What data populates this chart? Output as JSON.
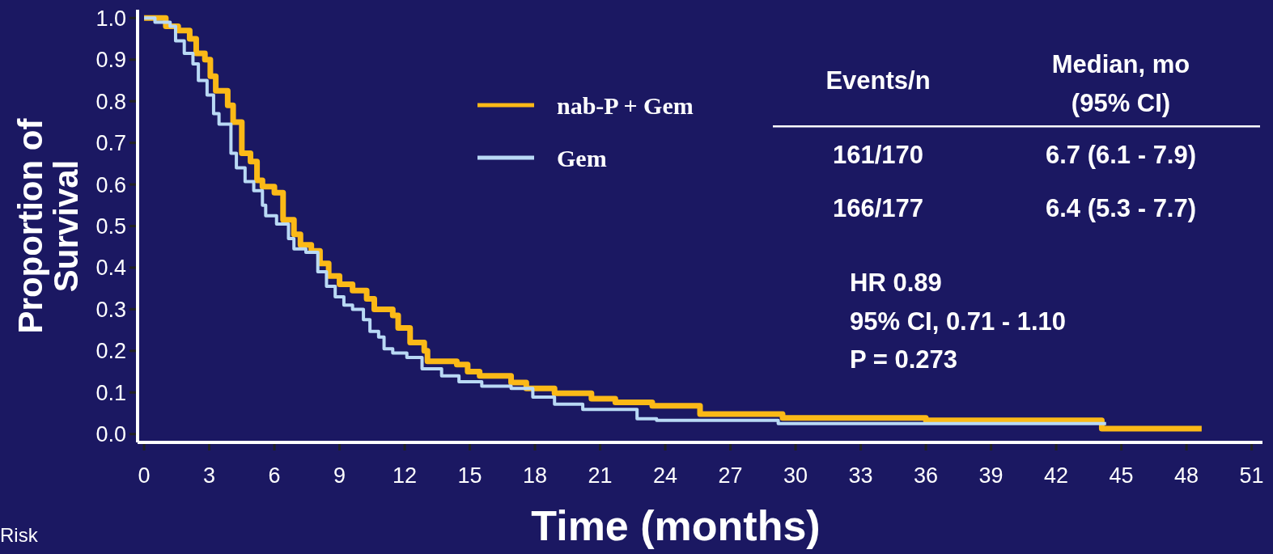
{
  "chart_data": {
    "type": "step",
    "xlabel": "Time (months)",
    "ylabel": "Proportion of Survival",
    "xlim": [
      -0.3,
      51.5
    ],
    "ylim": [
      -0.02,
      1.02
    ],
    "xticks": [
      0,
      3,
      6,
      9,
      12,
      15,
      18,
      21,
      24,
      27,
      30,
      33,
      36,
      39,
      42,
      45,
      48,
      51
    ],
    "yticks": [
      {
        "value": 0,
        "label": "0.0"
      },
      0.1,
      0.2,
      0.3,
      0.4,
      0.5,
      0.6,
      0.7,
      0.8,
      0.9,
      {
        "value": 1,
        "label": "1.0"
      }
    ],
    "legend": "top",
    "grid": false,
    "series": [
      {
        "name": "nab-P + Gem",
        "color": "#fbb917",
        "x": [
          0,
          1.0,
          1.57,
          2.1,
          2.4,
          2.8,
          3.05,
          3.3,
          3.85,
          4.1,
          4.5,
          4.9,
          5.2,
          5.45,
          6.0,
          6.4,
          6.9,
          7.2,
          7.7,
          8.1,
          8.5,
          9.0,
          9.6,
          10.25,
          10.6,
          11.45,
          11.7,
          12.25,
          12.9,
          13.05,
          14.4,
          14.9,
          15.45,
          16.9,
          17.6,
          18.9,
          20.6,
          21.7,
          23.4,
          25.6,
          29.4,
          36.0,
          44.1,
          48.7
        ],
        "values": [
          1.0,
          0.98,
          0.97,
          0.95,
          0.915,
          0.9,
          0.86,
          0.825,
          0.79,
          0.75,
          0.675,
          0.655,
          0.61,
          0.595,
          0.58,
          0.515,
          0.48,
          0.455,
          0.44,
          0.41,
          0.38,
          0.36,
          0.345,
          0.325,
          0.3,
          0.285,
          0.255,
          0.22,
          0.2,
          0.175,
          0.167,
          0.15,
          0.14,
          0.124,
          0.11,
          0.098,
          0.085,
          0.076,
          0.068,
          0.048,
          0.039,
          0.033,
          0.013,
          0.013
        ]
      },
      {
        "name": "Gem",
        "color": "#b9d9f5",
        "x": [
          0,
          0.5,
          1.2,
          1.45,
          1.85,
          2.25,
          2.5,
          2.9,
          3.2,
          3.45,
          4.0,
          4.25,
          4.65,
          5.05,
          5.45,
          5.6,
          6.1,
          6.65,
          6.9,
          7.45,
          8.0,
          8.4,
          8.8,
          9.2,
          9.6,
          10.1,
          10.4,
          10.8,
          11.05,
          11.45,
          12.1,
          12.8,
          13.7,
          14.5,
          15.55,
          16.9,
          17.9,
          18.9,
          20.2,
          22.7,
          23.6,
          29.2,
          44.3
        ],
        "values": [
          1.0,
          0.99,
          0.98,
          0.945,
          0.915,
          0.89,
          0.85,
          0.815,
          0.77,
          0.745,
          0.675,
          0.64,
          0.607,
          0.585,
          0.55,
          0.525,
          0.505,
          0.47,
          0.445,
          0.437,
          0.39,
          0.355,
          0.33,
          0.31,
          0.3,
          0.275,
          0.247,
          0.233,
          0.205,
          0.195,
          0.184,
          0.157,
          0.14,
          0.126,
          0.115,
          0.11,
          0.089,
          0.072,
          0.059,
          0.037,
          0.033,
          0.025,
          0.025
        ]
      }
    ],
    "annotations": [
      "Events/n",
      "Median, mo",
      "(95% CI)",
      "161/170",
      "6.7 (6.1 - 7.9)",
      "166/177",
      "6.4 (5.3 - 7.7)",
      "HR 0.89",
      "95% CI, 0.71 - 1.10",
      "P = 0.273",
      "Risk"
    ]
  }
}
